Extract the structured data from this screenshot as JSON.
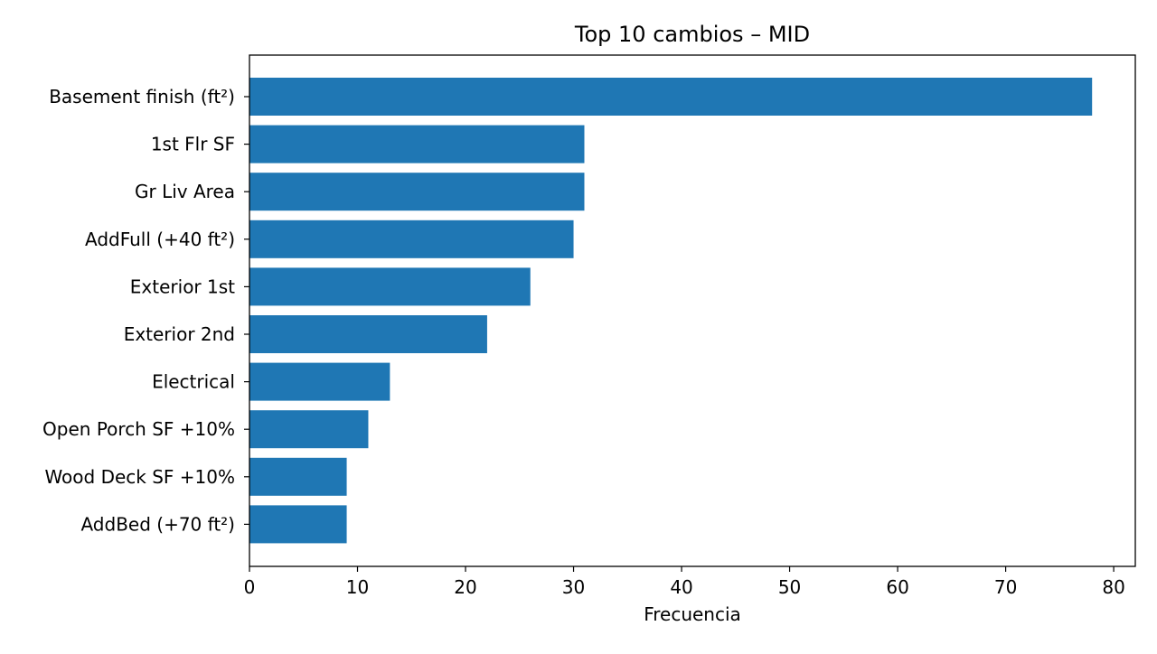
{
  "chart_data": {
    "type": "bar",
    "orientation": "horizontal",
    "title": "Top 10 cambios – MID",
    "xlabel": "Frecuencia",
    "ylabel": "",
    "xlim": [
      0,
      82
    ],
    "xticks": [
      0,
      10,
      20,
      30,
      40,
      50,
      60,
      70,
      80
    ],
    "grid": false,
    "legend": "none",
    "bar_color": "#1f77b4",
    "categories": [
      "Basement finish (ft²)",
      "1st Flr SF",
      "Gr Liv Area",
      "AddFull (+40 ft²)",
      "Exterior 1st",
      "Exterior 2nd",
      "Electrical",
      "Open Porch SF +10%",
      "Wood Deck SF +10%",
      "AddBed (+70 ft²)"
    ],
    "values": [
      78,
      31,
      31,
      30,
      26,
      22,
      13,
      11,
      9,
      9
    ]
  }
}
